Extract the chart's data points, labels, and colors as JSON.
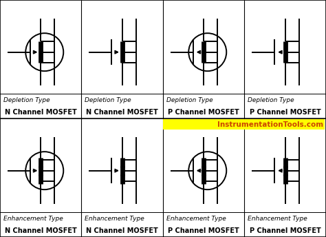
{
  "fig_width": 4.74,
  "fig_height": 3.44,
  "dpi": 100,
  "bg_color": "#ffffff",
  "title_bg": "#ffff00",
  "title_text": "InstrumentationTools.com",
  "title_color": "#cc4400",
  "title_fontsize": 7.5,
  "channels": [
    "N",
    "N",
    "P",
    "P"
  ],
  "has_circles": [
    true,
    false,
    true,
    false
  ],
  "n_channel": [
    true,
    true,
    false,
    false
  ],
  "ch_names": [
    "N Channel MOSFET",
    "N Channel MOSFET",
    "P Channel MOSFET",
    "P Channel MOSFET"
  ],
  "depl_label": "Depletion Type",
  "enh_label": "Enhancement Type"
}
